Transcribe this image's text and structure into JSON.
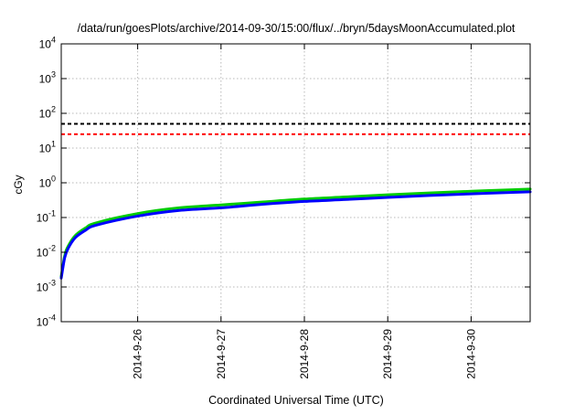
{
  "chart_data": {
    "type": "line",
    "title": "/data/run/goesPlots/archive/2014-09-30/15:00/flux/../bryn/5daysMoonAccumulated.plot",
    "xlabel": "Coordinated Universal Time (UTC)",
    "ylabel": "cGy",
    "x_scale": "time",
    "y_scale": "log",
    "xlim": [
      "2014-09-25T02:00",
      "2014-09-30T17:00"
    ],
    "ylim": [
      0.0001,
      10000
    ],
    "grid": true,
    "x_ticks": [
      {
        "value": "2014-09-26T00:00",
        "label": "2014-9-26"
      },
      {
        "value": "2014-09-27T00:00",
        "label": "2014-9-27"
      },
      {
        "value": "2014-09-28T00:00",
        "label": "2014-9-28"
      },
      {
        "value": "2014-09-29T00:00",
        "label": "2014-9-29"
      },
      {
        "value": "2014-09-30T00:00",
        "label": "2014-9-30"
      }
    ],
    "y_ticks": [
      {
        "value": 0.0001,
        "base": "10",
        "exp": "-4"
      },
      {
        "value": 0.001,
        "base": "10",
        "exp": "-3"
      },
      {
        "value": 0.01,
        "base": "10",
        "exp": "-2"
      },
      {
        "value": 0.1,
        "base": "10",
        "exp": "-1"
      },
      {
        "value": 1,
        "base": "10",
        "exp": "0"
      },
      {
        "value": 10,
        "base": "10",
        "exp": "1"
      },
      {
        "value": 100,
        "base": "10",
        "exp": "2"
      },
      {
        "value": 1000,
        "base": "10",
        "exp": "3"
      },
      {
        "value": 10000,
        "base": "10",
        "exp": "4"
      }
    ],
    "reference_lines": [
      {
        "y": 50,
        "color": "#000000",
        "style": "dashed"
      },
      {
        "y": 25,
        "color": "#ff0000",
        "style": "dashed"
      }
    ],
    "series": [
      {
        "color": "#00cc00",
        "x": [
          "2014-09-25T02:00",
          "2014-09-25T03:00",
          "2014-09-25T04:00",
          "2014-09-25T06:00",
          "2014-09-25T09:00",
          "2014-09-25T12:00",
          "2014-09-26T00:00",
          "2014-09-26T12:00",
          "2014-09-27T00:00",
          "2014-09-27T12:00",
          "2014-09-28T00:00",
          "2014-09-28T12:00",
          "2014-09-29T00:00",
          "2014-09-29T12:00",
          "2014-09-30T00:00",
          "2014-09-30T12:00",
          "2014-09-30T17:00"
        ],
        "y": [
          0.002,
          0.008,
          0.015,
          0.03,
          0.05,
          0.07,
          0.13,
          0.19,
          0.23,
          0.28,
          0.34,
          0.39,
          0.45,
          0.51,
          0.57,
          0.63,
          0.66
        ]
      },
      {
        "color": "#0000ff",
        "x": [
          "2014-09-25T02:00",
          "2014-09-25T03:00",
          "2014-09-25T04:00",
          "2014-09-25T06:00",
          "2014-09-25T09:00",
          "2014-09-25T12:00",
          "2014-09-26T00:00",
          "2014-09-26T12:00",
          "2014-09-27T00:00",
          "2014-09-27T12:00",
          "2014-09-28T00:00",
          "2014-09-28T12:00",
          "2014-09-29T00:00",
          "2014-09-29T12:00",
          "2014-09-30T00:00",
          "2014-09-30T12:00",
          "2014-09-30T17:00"
        ],
        "y": [
          0.0018,
          0.007,
          0.013,
          0.026,
          0.043,
          0.06,
          0.11,
          0.16,
          0.19,
          0.24,
          0.29,
          0.33,
          0.38,
          0.43,
          0.48,
          0.53,
          0.55
        ]
      }
    ]
  }
}
